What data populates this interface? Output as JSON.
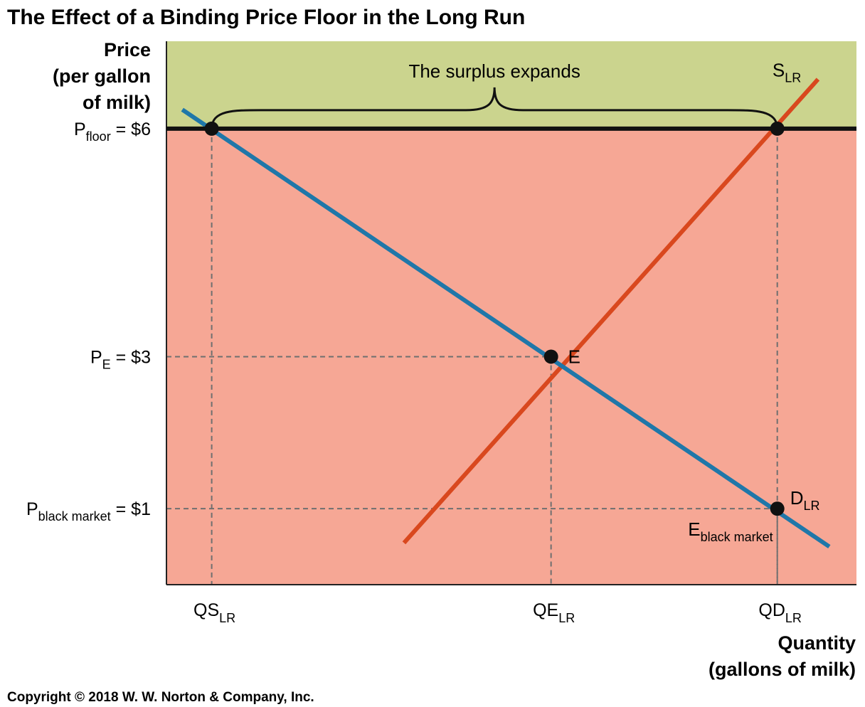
{
  "colors": {
    "surplus_region": "#CBD48E",
    "lower_region": "#F6A795",
    "supply": "#D9481E",
    "demand": "#1F77A9",
    "floor_line": "#111111",
    "guide": "#6f6f6f",
    "point": "#111111"
  },
  "chart_data": {
    "type": "line",
    "title": "The Effect of a Binding Price Floor in the Long Run",
    "ylabel": [
      "Price",
      "(per gallon",
      "of milk)"
    ],
    "xlabel": [
      "Quantity",
      "(gallons of milk)"
    ],
    "price_ticks": [
      {
        "main": "P",
        "sub": "floor",
        "rest": " = $6",
        "value": 6
      },
      {
        "main": "P",
        "sub": "E",
        "rest": " = $3",
        "value": 3
      },
      {
        "main": "P",
        "sub": "black market",
        "rest": " = $1",
        "value": 1
      }
    ],
    "quantity_ticks": [
      {
        "main": "QS",
        "sub": "LR",
        "value": 1
      },
      {
        "main": "QE",
        "sub": "LR",
        "value": 2.5
      },
      {
        "main": "QD",
        "sub": "LR",
        "value": 3.5
      }
    ],
    "xlim": [
      0.8,
      3.85
    ],
    "ylim": [
      0,
      7.15
    ],
    "price_floor": 6,
    "series": [
      {
        "name": "S",
        "name_sub": "LR",
        "key": "supply",
        "x": [
          1.85,
          3.68
        ],
        "y": [
          0.55,
          6.65
        ]
      },
      {
        "name": "D",
        "name_sub": "LR",
        "key": "demand",
        "x": [
          0.87,
          3.73
        ],
        "y": [
          6.25,
          0.5
        ]
      }
    ],
    "points": [
      {
        "label": "",
        "x": 1,
        "y": 6
      },
      {
        "label": "",
        "x": 3.5,
        "y": 6
      },
      {
        "label": "E",
        "x": 2.5,
        "y": 3
      },
      {
        "label": "E",
        "label_sub": "black market",
        "x": 3.5,
        "y": 1
      }
    ],
    "annotations": [
      {
        "text": "The surplus expands",
        "x_from": 1,
        "x_to": 3.5,
        "y": 6
      }
    ]
  },
  "copyright": "Copyright © 2018 W. W. Norton & Company, Inc."
}
